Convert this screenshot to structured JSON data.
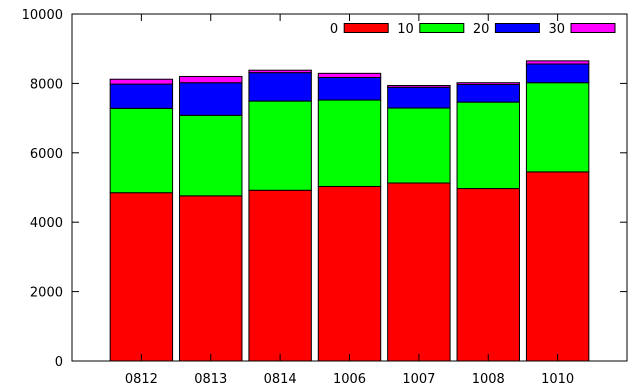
{
  "chart_data": {
    "type": "bar",
    "stacked": true,
    "categories": [
      "0812",
      "0813",
      "0814",
      "1006",
      "1007",
      "1008",
      "1010"
    ],
    "series": [
      {
        "name": "0",
        "color": "#ff0000",
        "values": [
          4850,
          4760,
          4920,
          5030,
          5130,
          4970,
          5450
        ]
      },
      {
        "name": "10",
        "color": "#00ff00",
        "values": [
          2430,
          2320,
          2570,
          2490,
          2160,
          2490,
          2570
        ]
      },
      {
        "name": "20",
        "color": "#0000ff",
        "values": [
          700,
          940,
          820,
          650,
          600,
          510,
          540
        ]
      },
      {
        "name": "30",
        "color": "#ff00ff",
        "values": [
          140,
          180,
          70,
          120,
          50,
          50,
          90
        ]
      }
    ],
    "ylim": [
      0,
      10000
    ],
    "yticks": [
      0,
      2000,
      4000,
      6000,
      8000,
      10000
    ],
    "title": "",
    "xlabel": "",
    "ylabel": "",
    "grid": false,
    "legend_position": "top-right"
  }
}
